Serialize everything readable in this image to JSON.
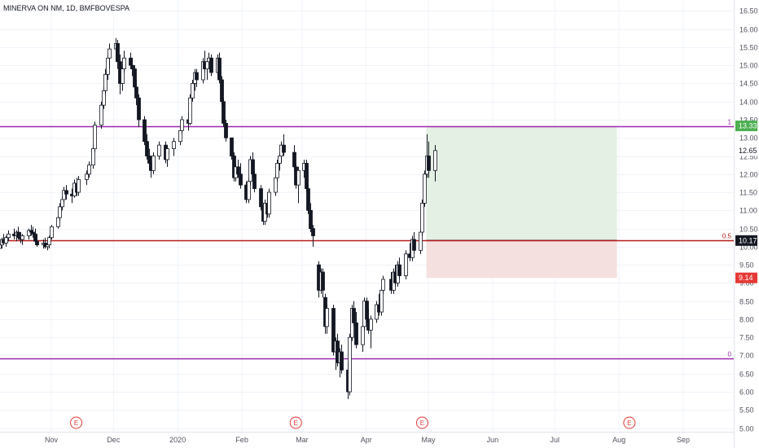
{
  "chart_data": {
    "type": "candlestick",
    "title": "MINERVA ON NM, 1D, BMFBOVESPA",
    "ylim": [
      4.9,
      16.8
    ],
    "y_ticks": [
      "5.00",
      "5.50",
      "6.00",
      "6.50",
      "7.00",
      "7.50",
      "8.00",
      "8.50",
      "9.00",
      "9.50",
      "10.00",
      "10.50",
      "11.00",
      "11.50",
      "12.00",
      "12.50",
      "13.00",
      "13.50",
      "14.00",
      "14.50",
      "15.00",
      "15.50",
      "16.00",
      "16.50"
    ],
    "x_labels": [
      {
        "label": "Nov",
        "date": "2019-11-01"
      },
      {
        "label": "Dec",
        "date": "2019-12-01"
      },
      {
        "label": "2020",
        "date": "2020-01-01"
      },
      {
        "label": "Feb",
        "date": "2020-02-01"
      },
      {
        "label": "Mar",
        "date": "2020-03-01"
      },
      {
        "label": "Apr",
        "date": "2020-04-01"
      },
      {
        "label": "May",
        "date": "2020-05-01"
      },
      {
        "label": "Jun",
        "date": "2020-06-01"
      },
      {
        "label": "Jul",
        "date": "2020-07-01"
      },
      {
        "label": "Aug",
        "date": "2020-08-01"
      },
      {
        "label": "Sep",
        "date": "2020-09-01"
      }
    ],
    "last_price": "12.65",
    "fib_levels": [
      {
        "level": "1",
        "value": 13.33,
        "tag": "13.33",
        "color": "#9c27b0"
      },
      {
        "level": "0.5",
        "value": 10.17,
        "tag": "10.17",
        "color": "#b71c1c"
      },
      {
        "level": "0",
        "value": 6.92,
        "tag": "",
        "color": "#9c27b0"
      }
    ],
    "position": {
      "entry": 10.17,
      "target": 13.33,
      "stop": 9.14,
      "target_tag": "13.33",
      "entry_tag": "10.17",
      "stop_tag": "9.14",
      "start_date": "2020-04-30",
      "end_date": "2020-07-31",
      "profit_color": "#e3f0e3",
      "loss_color": "#f5e0e0"
    },
    "earnings": [
      {
        "label": "E",
        "date": "2019-11-13"
      },
      {
        "label": "E",
        "date": "2020-02-27"
      },
      {
        "label": "E",
        "date": "2020-04-28"
      },
      {
        "label": "E",
        "date": "2020-08-06"
      }
    ],
    "colors": {
      "up": "#ffffff",
      "down": "#131722",
      "wick": "#131722"
    },
    "candles": [
      [
        "2019-10-07",
        9.95,
        10.15,
        9.85,
        10.05
      ],
      [
        "2019-10-08",
        10.05,
        10.25,
        9.95,
        10.2
      ],
      [
        "2019-10-09",
        10.2,
        10.35,
        10.05,
        10.1
      ],
      [
        "2019-10-10",
        10.1,
        10.3,
        10.0,
        10.25
      ],
      [
        "2019-10-11",
        10.25,
        10.45,
        10.15,
        10.35
      ],
      [
        "2019-10-14",
        10.35,
        10.5,
        10.2,
        10.3
      ],
      [
        "2019-10-15",
        10.3,
        10.45,
        10.15,
        10.4
      ],
      [
        "2019-10-16",
        10.4,
        10.55,
        10.2,
        10.25
      ],
      [
        "2019-10-17",
        10.25,
        10.4,
        10.1,
        10.2
      ],
      [
        "2019-10-18",
        10.2,
        10.35,
        10.05,
        10.3
      ],
      [
        "2019-10-21",
        10.3,
        10.5,
        10.2,
        10.45
      ],
      [
        "2019-10-22",
        10.45,
        10.6,
        10.3,
        10.4
      ],
      [
        "2019-10-23",
        10.4,
        10.55,
        10.25,
        10.35
      ],
      [
        "2019-10-24",
        10.35,
        10.5,
        10.1,
        10.15
      ],
      [
        "2019-10-25",
        10.15,
        10.3,
        10.0,
        10.05
      ],
      [
        "2019-10-28",
        10.05,
        10.2,
        9.95,
        10.1
      ],
      [
        "2019-10-29",
        10.1,
        10.25,
        9.95,
        10.0
      ],
      [
        "2019-10-30",
        10.0,
        10.15,
        9.9,
        10.05
      ],
      [
        "2019-10-31",
        10.05,
        10.3,
        9.95,
        10.25
      ],
      [
        "2019-11-01",
        10.25,
        10.6,
        10.2,
        10.55
      ],
      [
        "2019-11-04",
        10.55,
        10.85,
        10.5,
        10.8
      ],
      [
        "2019-11-05",
        10.8,
        11.2,
        10.7,
        11.1
      ],
      [
        "2019-11-06",
        11.1,
        11.4,
        11.0,
        11.3
      ],
      [
        "2019-11-07",
        11.3,
        11.65,
        11.2,
        11.55
      ],
      [
        "2019-11-08",
        11.55,
        11.7,
        11.3,
        11.45
      ],
      [
        "2019-11-11",
        11.45,
        11.6,
        11.2,
        11.4
      ],
      [
        "2019-11-12",
        11.4,
        11.85,
        11.35,
        11.75
      ],
      [
        "2019-11-13",
        11.75,
        11.9,
        11.4,
        11.5
      ],
      [
        "2019-11-14",
        11.5,
        11.95,
        11.4,
        11.85
      ],
      [
        "2019-11-18",
        11.85,
        12.1,
        11.7,
        12.0
      ],
      [
        "2019-11-19",
        12.0,
        12.35,
        11.9,
        12.25
      ],
      [
        "2019-11-21",
        12.25,
        12.8,
        12.15,
        12.7
      ],
      [
        "2019-11-22",
        12.7,
        13.45,
        12.6,
        13.35
      ],
      [
        "2019-11-25",
        13.35,
        14.0,
        13.25,
        13.9
      ],
      [
        "2019-11-26",
        13.9,
        14.4,
        13.8,
        14.3
      ],
      [
        "2019-11-27",
        14.3,
        14.9,
        14.2,
        14.75
      ],
      [
        "2019-11-28",
        14.75,
        15.3,
        14.6,
        15.2
      ],
      [
        "2019-11-29",
        15.2,
        15.6,
        14.9,
        15.45
      ],
      [
        "2019-12-02",
        15.45,
        15.75,
        15.1,
        15.6
      ],
      [
        "2019-12-03",
        15.6,
        15.7,
        14.9,
        15.1
      ],
      [
        "2019-12-04",
        15.1,
        15.3,
        14.2,
        14.5
      ],
      [
        "2019-12-05",
        14.5,
        15.0,
        14.3,
        14.9
      ],
      [
        "2019-12-06",
        14.9,
        15.4,
        14.8,
        15.2
      ],
      [
        "2019-12-09",
        15.2,
        15.35,
        14.9,
        15.0
      ],
      [
        "2019-12-10",
        15.0,
        15.2,
        14.7,
        14.9
      ],
      [
        "2019-12-11",
        14.9,
        15.0,
        14.3,
        14.4
      ],
      [
        "2019-12-12",
        14.4,
        14.6,
        13.9,
        14.1
      ],
      [
        "2019-12-13",
        14.1,
        14.2,
        13.3,
        13.5
      ],
      [
        "2019-12-16",
        13.5,
        13.6,
        12.8,
        12.9
      ],
      [
        "2019-12-17",
        12.9,
        13.1,
        12.4,
        12.5
      ],
      [
        "2019-12-18",
        12.5,
        12.7,
        12.1,
        12.3
      ],
      [
        "2019-12-19",
        12.3,
        12.5,
        11.9,
        12.1
      ],
      [
        "2019-12-20",
        12.1,
        12.6,
        12.0,
        12.5
      ],
      [
        "2019-12-23",
        12.5,
        12.9,
        12.4,
        12.8
      ],
      [
        "2019-12-26",
        12.8,
        12.9,
        12.3,
        12.4
      ],
      [
        "2019-12-27",
        12.4,
        12.8,
        12.2,
        12.7
      ],
      [
        "2019-12-30",
        12.7,
        13.0,
        12.5,
        12.9
      ],
      [
        "2020-01-02",
        12.9,
        13.3,
        12.8,
        13.2
      ],
      [
        "2020-01-03",
        13.2,
        13.6,
        13.1,
        13.5
      ],
      [
        "2020-01-06",
        13.5,
        13.7,
        13.2,
        13.4
      ],
      [
        "2020-01-07",
        13.4,
        14.2,
        13.35,
        14.1
      ],
      [
        "2020-01-08",
        14.1,
        14.6,
        14.0,
        14.5
      ],
      [
        "2020-01-09",
        14.5,
        14.9,
        14.3,
        14.8
      ],
      [
        "2020-01-10",
        14.8,
        14.9,
        14.4,
        14.6
      ],
      [
        "2020-01-13",
        14.6,
        15.2,
        14.5,
        15.1
      ],
      [
        "2020-01-14",
        15.1,
        15.4,
        14.8,
        14.9
      ],
      [
        "2020-01-15",
        14.9,
        15.2,
        14.6,
        15.1
      ],
      [
        "2020-01-16",
        15.1,
        15.35,
        14.9,
        15.2
      ],
      [
        "2020-01-17",
        15.2,
        15.3,
        14.7,
        14.8
      ],
      [
        "2020-01-20",
        14.8,
        15.3,
        14.7,
        15.2
      ],
      [
        "2020-01-21",
        15.2,
        15.35,
        14.5,
        14.6
      ],
      [
        "2020-01-22",
        14.6,
        14.7,
        13.9,
        14.0
      ],
      [
        "2020-01-23",
        14.0,
        14.1,
        13.3,
        13.4
      ],
      [
        "2020-01-24",
        13.4,
        13.5,
        12.9,
        13.0
      ],
      [
        "2020-01-27",
        13.0,
        13.0,
        12.4,
        12.5
      ],
      [
        "2020-01-28",
        12.5,
        12.6,
        11.8,
        11.9
      ],
      [
        "2020-01-29",
        11.9,
        12.3,
        11.8,
        12.2
      ],
      [
        "2020-01-30",
        12.2,
        12.4,
        11.9,
        12.0
      ],
      [
        "2020-01-31",
        12.0,
        12.3,
        11.6,
        11.7
      ],
      [
        "2020-02-03",
        11.7,
        11.8,
        11.2,
        11.3
      ],
      [
        "2020-02-04",
        11.3,
        11.9,
        11.2,
        11.8
      ],
      [
        "2020-02-05",
        11.8,
        12.5,
        11.7,
        12.4
      ],
      [
        "2020-02-06",
        12.4,
        12.6,
        11.9,
        12.0
      ],
      [
        "2020-02-07",
        12.0,
        12.1,
        11.5,
        11.6
      ],
      [
        "2020-02-10",
        11.6,
        11.7,
        11.0,
        11.1
      ],
      [
        "2020-02-11",
        11.1,
        11.2,
        10.6,
        10.7
      ],
      [
        "2020-02-12",
        10.7,
        11.3,
        10.6,
        11.2
      ],
      [
        "2020-02-13",
        11.2,
        11.5,
        10.8,
        10.9
      ],
      [
        "2020-02-14",
        10.9,
        11.6,
        10.8,
        11.5
      ],
      [
        "2020-02-17",
        11.5,
        12.0,
        11.4,
        11.9
      ],
      [
        "2020-02-18",
        11.9,
        12.4,
        11.8,
        12.3
      ],
      [
        "2020-02-19",
        12.3,
        12.6,
        12.1,
        12.5
      ],
      [
        "2020-02-20",
        12.5,
        12.9,
        12.3,
        12.8
      ],
      [
        "2020-02-21",
        12.8,
        13.1,
        12.5,
        12.6
      ],
      [
        "2020-02-26",
        12.6,
        12.8,
        12.1,
        12.2
      ],
      [
        "2020-02-27",
        12.2,
        12.3,
        11.6,
        11.7
      ],
      [
        "2020-02-28",
        11.7,
        12.2,
        11.2,
        12.1
      ],
      [
        "2020-03-02",
        12.1,
        12.4,
        11.9,
        12.3
      ],
      [
        "2020-03-03",
        12.3,
        12.4,
        11.5,
        11.6
      ],
      [
        "2020-03-04",
        11.6,
        11.7,
        10.9,
        11.0
      ],
      [
        "2020-03-05",
        11.0,
        11.2,
        10.4,
        10.5
      ],
      [
        "2020-03-06",
        10.5,
        10.6,
        10.0,
        10.3
      ],
      [
        "2020-03-09",
        9.5,
        9.6,
        8.6,
        8.8
      ],
      [
        "2020-03-10",
        8.8,
        9.4,
        8.7,
        9.3
      ],
      [
        "2020-03-11",
        9.3,
        9.4,
        8.6,
        8.8
      ],
      [
        "2020-03-12",
        8.6,
        8.7,
        7.6,
        7.8
      ],
      [
        "2020-03-13",
        7.8,
        8.4,
        7.6,
        8.3
      ],
      [
        "2020-03-16",
        8.3,
        8.4,
        7.0,
        7.1
      ],
      [
        "2020-03-17",
        7.1,
        7.5,
        6.6,
        7.4
      ],
      [
        "2020-03-18",
        7.4,
        7.6,
        6.7,
        6.8
      ],
      [
        "2020-03-19",
        6.8,
        7.2,
        6.4,
        7.1
      ],
      [
        "2020-03-20",
        7.1,
        7.3,
        6.5,
        6.6
      ],
      [
        "2020-03-23",
        6.6,
        6.8,
        5.8,
        6.0
      ],
      [
        "2020-03-24",
        6.0,
        7.6,
        5.9,
        7.5
      ],
      [
        "2020-03-25",
        7.5,
        8.4,
        7.4,
        8.3
      ],
      [
        "2020-03-26",
        8.3,
        8.5,
        7.8,
        7.9
      ],
      [
        "2020-03-27",
        7.9,
        8.2,
        7.2,
        7.3
      ],
      [
        "2020-03-30",
        7.3,
        7.9,
        7.1,
        7.8
      ],
      [
        "2020-03-31",
        7.8,
        8.6,
        7.7,
        8.5
      ],
      [
        "2020-04-01",
        8.5,
        8.6,
        7.9,
        8.0
      ],
      [
        "2020-04-02",
        8.0,
        8.3,
        7.6,
        7.7
      ],
      [
        "2020-04-03",
        7.7,
        8.1,
        7.2,
        8.0
      ],
      [
        "2020-04-06",
        8.0,
        8.5,
        7.9,
        8.4
      ],
      [
        "2020-04-07",
        8.4,
        8.7,
        8.1,
        8.2
      ],
      [
        "2020-04-08",
        8.2,
        8.9,
        8.1,
        8.8
      ],
      [
        "2020-04-09",
        8.8,
        9.2,
        8.7,
        9.1
      ],
      [
        "2020-04-13",
        9.1,
        9.3,
        8.7,
        8.8
      ],
      [
        "2020-04-14",
        8.8,
        9.4,
        8.7,
        9.3
      ],
      [
        "2020-04-15",
        9.3,
        9.5,
        8.9,
        9.0
      ],
      [
        "2020-04-16",
        9.0,
        9.6,
        8.9,
        9.5
      ],
      [
        "2020-04-17",
        9.5,
        9.7,
        9.1,
        9.2
      ],
      [
        "2020-04-20",
        9.2,
        9.9,
        9.1,
        9.8
      ],
      [
        "2020-04-22",
        9.8,
        10.1,
        9.6,
        9.7
      ],
      [
        "2020-04-23",
        9.7,
        10.3,
        9.6,
        10.2
      ],
      [
        "2020-04-24",
        10.2,
        10.4,
        9.8,
        9.9
      ],
      [
        "2020-04-27",
        9.9,
        10.5,
        9.8,
        10.4
      ],
      [
        "2020-04-28",
        10.4,
        11.3,
        10.3,
        11.2
      ],
      [
        "2020-04-29",
        11.2,
        12.1,
        11.1,
        12.0
      ],
      [
        "2020-04-30",
        12.0,
        13.1,
        11.9,
        12.5
      ],
      [
        "2020-05-01",
        12.5,
        12.9,
        11.9,
        12.1
      ],
      [
        "2020-05-04",
        12.1,
        12.8,
        11.8,
        12.65
      ]
    ]
  }
}
